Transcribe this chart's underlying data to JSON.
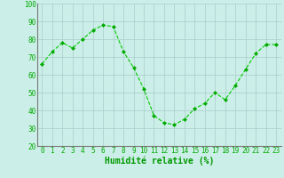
{
  "x": [
    0,
    1,
    2,
    3,
    4,
    5,
    6,
    7,
    8,
    9,
    10,
    11,
    12,
    13,
    14,
    15,
    16,
    17,
    18,
    19,
    20,
    21,
    22,
    23
  ],
  "y": [
    66,
    73,
    78,
    75,
    80,
    85,
    88,
    87,
    73,
    64,
    52,
    37,
    33,
    32,
    35,
    41,
    44,
    50,
    46,
    54,
    63,
    72,
    77,
    77
  ],
  "line_color": "#00cc00",
  "marker_color": "#00aa00",
  "bg_color": "#cceee8",
  "grid_color": "#aacccc",
  "xlabel": "Humidité relative (%)",
  "xlabel_color": "#009900",
  "xlabel_fontsize": 7,
  "tick_color": "#00aa00",
  "tick_fontsize": 5.5,
  "ylim": [
    20,
    100
  ],
  "xlim_min": -0.5,
  "xlim_max": 23.5,
  "yticks": [
    20,
    30,
    40,
    50,
    60,
    70,
    80,
    90,
    100
  ],
  "xticks": [
    0,
    1,
    2,
    3,
    4,
    5,
    6,
    7,
    8,
    9,
    10,
    11,
    12,
    13,
    14,
    15,
    16,
    17,
    18,
    19,
    20,
    21,
    22,
    23
  ]
}
